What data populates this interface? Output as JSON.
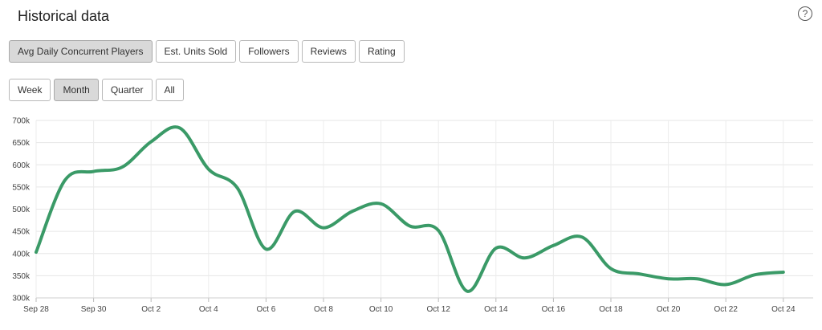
{
  "header": {
    "title": "Historical data",
    "help_icon": "question-circle-icon"
  },
  "metric_tabs": [
    {
      "label": "Avg Daily Concurrent Players",
      "active": true
    },
    {
      "label": "Est. Units Sold",
      "active": false
    },
    {
      "label": "Followers",
      "active": false
    },
    {
      "label": "Reviews",
      "active": false
    },
    {
      "label": "Rating",
      "active": false
    }
  ],
  "range_tabs": [
    {
      "label": "Week",
      "active": false
    },
    {
      "label": "Month",
      "active": true
    },
    {
      "label": "Quarter",
      "active": false
    },
    {
      "label": "All",
      "active": false
    }
  ],
  "chart_data": {
    "type": "line",
    "line_color": "#3a9a67",
    "grid": true,
    "ylim": [
      300000,
      700000
    ],
    "y_ticks": [
      {
        "value": 700000,
        "label": "700k"
      },
      {
        "value": 650000,
        "label": "650k"
      },
      {
        "value": 600000,
        "label": "600k"
      },
      {
        "value": 550000,
        "label": "550k"
      },
      {
        "value": 500000,
        "label": "500k"
      },
      {
        "value": 450000,
        "label": "450k"
      },
      {
        "value": 400000,
        "label": "400k"
      },
      {
        "value": 350000,
        "label": "350k"
      },
      {
        "value": 300000,
        "label": "300k"
      }
    ],
    "x_ticks": [
      "Sep 28",
      "Sep 30",
      "Oct 2",
      "Oct 4",
      "Oct 6",
      "Oct 8",
      "Oct 10",
      "Oct 12",
      "Oct 14",
      "Oct 16",
      "Oct 18",
      "Oct 20",
      "Oct 22",
      "Oct 24"
    ],
    "x": [
      "Sep 28",
      "Sep 29",
      "Sep 30",
      "Oct 1",
      "Oct 2",
      "Oct 3",
      "Oct 4",
      "Oct 5",
      "Oct 6",
      "Oct 7",
      "Oct 8",
      "Oct 9",
      "Oct 10",
      "Oct 11",
      "Oct 12",
      "Oct 13",
      "Oct 14",
      "Oct 15",
      "Oct 16",
      "Oct 17",
      "Oct 18",
      "Oct 19",
      "Oct 20",
      "Oct 21",
      "Oct 22",
      "Oct 23",
      "Oct 24"
    ],
    "series": [
      {
        "values": [
          403000,
          565000,
          585000,
          595000,
          652000,
          683000,
          590000,
          548000,
          410000,
          495000,
          458000,
          495000,
          512000,
          462000,
          452000,
          315000,
          412000,
          390000,
          418000,
          437000,
          366000,
          354000,
          343000,
          343000,
          330000,
          352000,
          358000
        ]
      }
    ]
  }
}
